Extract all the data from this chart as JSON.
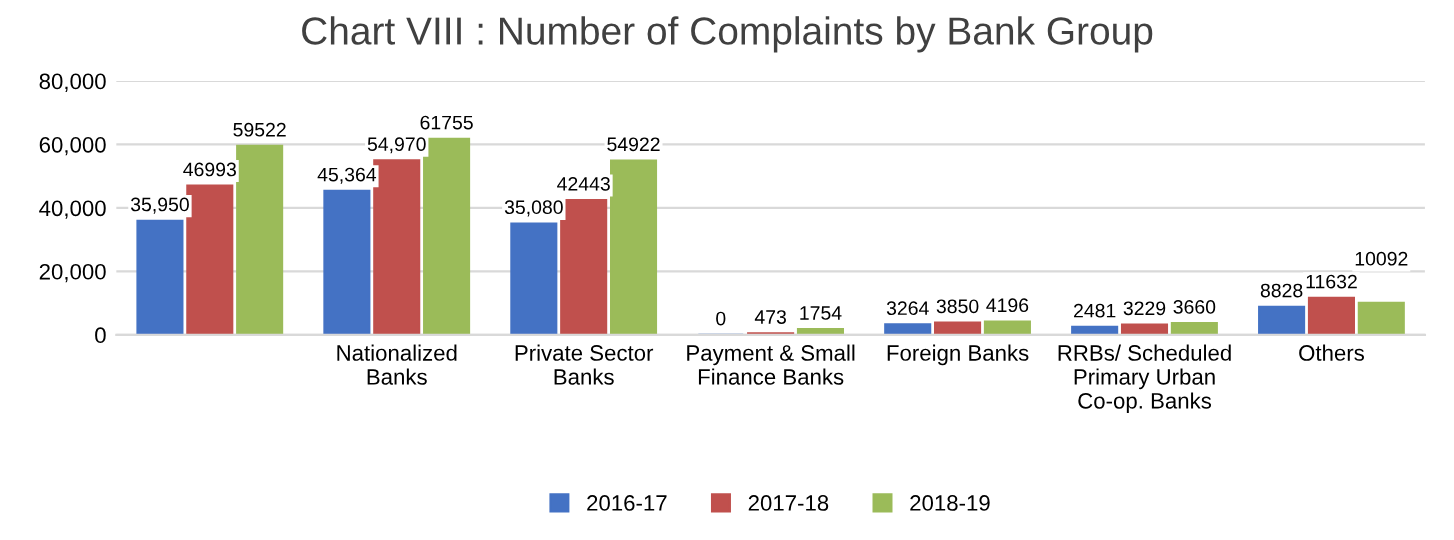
{
  "chart_data": {
    "type": "bar",
    "title": "Chart VIII : Number of Complaints by Bank Group",
    "categories": [
      null,
      "Nationalized\nBanks",
      "Private Sector\nBanks",
      "Payment & Small\nFinance Banks",
      "Foreign Banks",
      "RRBs/ Scheduled\nPrimary Urban\nCo-op. Banks",
      "Others"
    ],
    "series": [
      {
        "name": "2016-17",
        "color": "#4472c4",
        "values": [
          35950,
          45364,
          35080,
          0,
          3264,
          2481,
          8828
        ],
        "value_labels": [
          "35,950",
          "45,364",
          "35,080",
          "0",
          "3264",
          "2481",
          "8828"
        ]
      },
      {
        "name": "2017-18",
        "color": "#c0504d",
        "values": [
          46993,
          54970,
          42443,
          473,
          3850,
          3229,
          11632
        ],
        "value_labels": [
          "46993",
          "54,970",
          "42443",
          "473",
          "3850",
          "3229",
          "11632"
        ]
      },
      {
        "name": "2018-19",
        "color": "#9bbb59",
        "values": [
          59522,
          61755,
          54922,
          1754,
          4196,
          3660,
          10092
        ],
        "value_labels": [
          "59522",
          "61755",
          "54922",
          "1754",
          "4196",
          "3660",
          "10092"
        ]
      }
    ],
    "ylim": [
      0,
      80000
    ],
    "yticks": [
      0,
      {
        "value": 20000,
        "label": "20,000"
      },
      {
        "value": 40000,
        "label": "40,000"
      },
      {
        "value": 60000,
        "label": "60,000"
      },
      {
        "value": 80000,
        "label": "80,000"
      }
    ],
    "grid": "y",
    "legend": "bottom"
  }
}
